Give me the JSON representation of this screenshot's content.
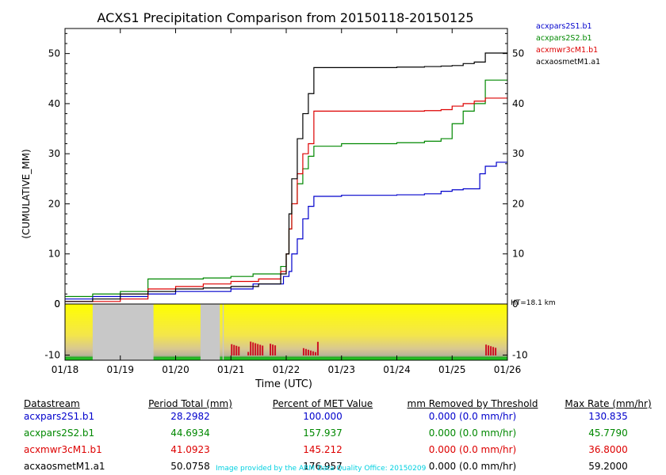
{
  "chart_data": {
    "type": "line",
    "title": "ACXS1 Precipitation Comparison from 20150118-20150125",
    "ylabel": "(CUMULATIVE_MM)",
    "xlabel": "Time (UTC)",
    "ylim": [
      0,
      55
    ],
    "yticks": [
      0,
      10,
      20,
      30,
      40,
      50
    ],
    "xlim": [
      0,
      8
    ],
    "xticks": [
      "01/18",
      "01/19",
      "01/20",
      "01/21",
      "01/22",
      "01/23",
      "01/24",
      "01/25",
      "01/26"
    ],
    "series": [
      {
        "name": "acxpars2S1.b1",
        "color": "#0000cc",
        "x": [
          0,
          0.5,
          1.5,
          2.0,
          3.0,
          3.4,
          3.95,
          4.05,
          4.1,
          4.2,
          4.3,
          4.4,
          4.5,
          5.0,
          6.0,
          6.5,
          6.6,
          6.7,
          6.8,
          7.0,
          7.2,
          7.5,
          7.6,
          7.8,
          8.0
        ],
        "values": [
          1.0,
          1.5,
          2.0,
          2.5,
          3.0,
          4.0,
          5.5,
          6.5,
          10.0,
          13.0,
          17.0,
          19.5,
          21.5,
          21.7,
          21.8,
          22.0,
          22.0,
          22.0,
          22.5,
          22.8,
          23.0,
          26.0,
          27.5,
          28.3,
          28.3
        ]
      },
      {
        "name": "acxpars2S2.b1",
        "color": "#008800",
        "x": [
          0,
          0.5,
          1.0,
          1.5,
          2.0,
          2.5,
          3.0,
          3.4,
          3.9,
          4.0,
          4.05,
          4.1,
          4.2,
          4.3,
          4.4,
          4.5,
          5.0,
          6.0,
          6.5,
          6.8,
          7.0,
          7.2,
          7.4,
          7.6,
          8.0
        ],
        "values": [
          1.5,
          2.0,
          2.5,
          5.0,
          5.0,
          5.2,
          5.5,
          6.0,
          7.5,
          10.0,
          15.0,
          20.0,
          24.0,
          27.0,
          29.5,
          31.5,
          32.0,
          32.2,
          32.5,
          33.0,
          36.0,
          38.5,
          40.0,
          44.7,
          44.7
        ]
      },
      {
        "name": "acxmwr3cM1.b1",
        "color": "#dd0000",
        "x": [
          0,
          0.5,
          1.0,
          1.5,
          2.0,
          2.5,
          3.0,
          3.5,
          3.9,
          4.0,
          4.05,
          4.1,
          4.2,
          4.3,
          4.4,
          4.5,
          5.0,
          6.0,
          6.5,
          6.8,
          7.0,
          7.2,
          7.4,
          7.6,
          8.0
        ],
        "values": [
          0.5,
          0.5,
          1.0,
          3.0,
          3.5,
          4.0,
          4.5,
          5.0,
          6.5,
          10.0,
          15.0,
          20.0,
          26.0,
          30.0,
          32.0,
          38.5,
          38.5,
          38.5,
          38.6,
          38.8,
          39.5,
          40.0,
          40.5,
          41.1,
          41.1
        ]
      },
      {
        "name": "acxaosmetM1.a1",
        "color": "#000000",
        "x": [
          0,
          0.5,
          1.0,
          1.5,
          2.0,
          2.5,
          3.0,
          3.5,
          3.9,
          4.0,
          4.05,
          4.1,
          4.2,
          4.3,
          4.4,
          4.5,
          5.0,
          6.0,
          6.5,
          6.8,
          7.0,
          7.2,
          7.4,
          7.6,
          8.0
        ],
        "values": [
          0.5,
          1.0,
          2.0,
          2.5,
          3.0,
          3.2,
          3.5,
          4.0,
          6.0,
          10.0,
          18.0,
          25.0,
          33.0,
          38.0,
          42.0,
          47.2,
          47.2,
          47.3,
          47.4,
          47.5,
          47.6,
          48.0,
          48.3,
          50.1,
          50.1
        ]
      }
    ],
    "lower_panel": {
      "ylim": [
        -11,
        0
      ],
      "yticks": [
        0,
        -10
      ],
      "annotation": "HT=18.1 km",
      "missing_intervals": [
        [
          0.5,
          1.6
        ],
        [
          2.45,
          2.8
        ],
        [
          2.85,
          2.87
        ]
      ]
    }
  },
  "table": {
    "headers": [
      "Datastream",
      "Period Total (mm)",
      "Percent of MET Value",
      "mm Removed by Threshold",
      "Max Rate (mm/hr)"
    ],
    "rows": [
      {
        "name": "acxpars2S1.b1",
        "color": "#0000cc",
        "total": "28.2982",
        "percent": "100.000",
        "removed": "0.000 (0.0 mm/hr)",
        "max": "130.835"
      },
      {
        "name": "acxpars2S2.b1",
        "color": "#008800",
        "total": "44.6934",
        "percent": "157.937",
        "removed": "0.000 (0.0 mm/hr)",
        "max": "45.7790"
      },
      {
        "name": "acxmwr3cM1.b1",
        "color": "#dd0000",
        "total": "41.0923",
        "percent": "145.212",
        "removed": "0.000 (0.0 mm/hr)",
        "max": "36.8000"
      },
      {
        "name": "acxaosmetM1.a1",
        "color": "#000000",
        "total": "50.0758",
        "percent": "176.957",
        "removed": "0.000 (0.0 mm/hr)",
        "max": "59.2000"
      }
    ]
  },
  "credit": "Image provided by the ARM Data Quality Office: 20150209"
}
